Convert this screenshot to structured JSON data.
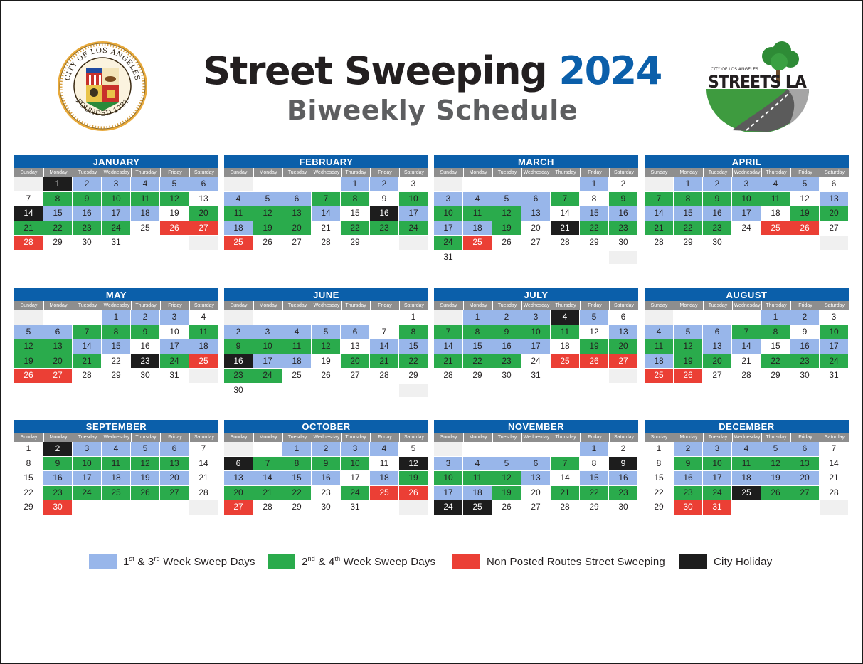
{
  "header": {
    "title_main": "Street Sweeping",
    "title_year": "2024",
    "subtitle": "Biweekly Schedule"
  },
  "seal": {
    "text_top": "CITY OF LOS ANGELES",
    "text_bottom": "FOUNDED 1781"
  },
  "logo": {
    "text_small": "CITY OF LOS ANGELES",
    "text_main": "STREETS LA"
  },
  "weekday_labels": [
    "Sunday",
    "Monday",
    "Tuesday",
    "Wednesday",
    "Thursday",
    "Friday",
    "Saturday"
  ],
  "colors": {
    "header_blue": "#0b5faa",
    "week_1_3": "#98b6ea",
    "week_2_4": "#2aab4c",
    "non_posted": "#eb3f35",
    "holiday": "#1d1d1d",
    "weekend": "#f0f0f0"
  },
  "months": [
    {
      "name": "JANUARY",
      "start": 1,
      "days": 31,
      "codes": "kbbbbb.ggggg.kbbbb.ggggg.rrr"
    },
    {
      "name": "FEBRUARY",
      "start": 4,
      "days": 29,
      "codes": "bb.bbbgg.ggggb.kbbgg.gggr"
    },
    {
      "name": "MARCH",
      "start": 5,
      "days": 31,
      "codes": "b.bbbbg.ggggb.bbbbg.kgggr.."
    },
    {
      "name": "APRIL",
      "start": 1,
      "days": 30,
      "codes": "bbbbb.ggggg.bbbbb.ggggg.rr"
    },
    {
      "name": "MAY",
      "start": 3,
      "days": 31,
      "codes": "bbb.bbggg.gggbb.bbggg.kgrrr"
    },
    {
      "name": "JUNE",
      "start": 6,
      "days": 30,
      "codes": ".bbbbb.ggggg.bbkbb.ggggg."
    },
    {
      "name": "JULY",
      "start": 1,
      "days": 31,
      "codes": "bbbkb.ggggg.bbbbb.ggggg.rrr"
    },
    {
      "name": "AUGUST",
      "start": 4,
      "days": 31,
      "codes": "bb.bbbgg.gggbb.bbbgg.gggrr."
    },
    {
      "name": "SEPTEMBER",
      "start": 0,
      "days": 30,
      "codes": ".kbbbb..ggggg..bbbbb..ggggg..r"
    },
    {
      "name": "OCTOBER",
      "start": 2,
      "days": 31,
      "codes": "bbbb.kgggg.kbbbb.bgggg.grrr"
    },
    {
      "name": "NOVEMBER",
      "start": 5,
      "days": 30,
      "codes": "b.bbbbg.kgggb.bbbbg.gggkk."
    },
    {
      "name": "DECEMBER",
      "start": 0,
      "days": 31,
      "codes": ".bbbbb..ggggg..bbbbb..ggkgg..rr"
    }
  ],
  "legend": [
    {
      "key": "b",
      "label_pre": "1",
      "sup1": "st",
      "mid": " & 3",
      "sup2": "rd",
      "post": " Week Sweep Days"
    },
    {
      "key": "g",
      "label_pre": "2",
      "sup1": "nd",
      "mid": " & 4",
      "sup2": "th",
      "post": " Week Sweep Days"
    },
    {
      "key": "r",
      "label_pre": "Non Posted Routes Street Sweeping",
      "sup1": "",
      "mid": "",
      "sup2": "",
      "post": ""
    },
    {
      "key": "k",
      "label_pre": "City Holiday",
      "sup1": "",
      "mid": "",
      "sup2": "",
      "post": ""
    }
  ]
}
